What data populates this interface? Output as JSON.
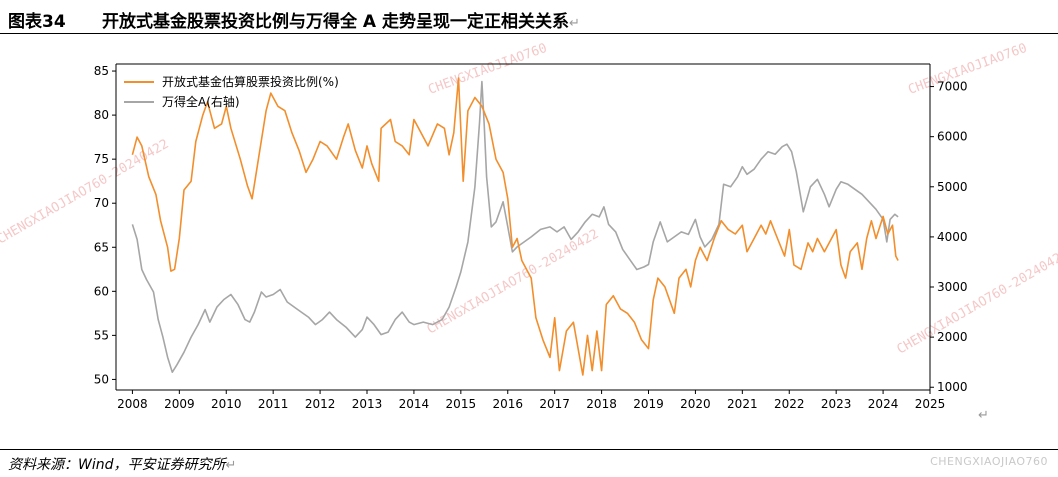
{
  "header": {
    "figure_label": "图表34",
    "title": "开放式基金股票投资比例与万得全 A 走势呈现一定正相关关系"
  },
  "footer": {
    "source": "资料来源：Wind，平安证券研究所",
    "watermark": "CHENGXIAOJIAO760"
  },
  "watermarks": [
    "CHENGXIAOJIAO760-20240422",
    "CHENGXIAOJIAO760",
    "CHENGXIAOJIAO760-20240422",
    "CHENGXIAOJIAO760-20240422",
    "CHENGXIAOJIAO760"
  ],
  "colors": {
    "fund_series": "#f28e2b",
    "index_series": "#a6a6a6",
    "watermark": "#f2b5b5"
  },
  "chart_data": {
    "type": "line",
    "title": "",
    "legend_position": "top-left",
    "grid": false,
    "x_ticks": [
      "2008",
      "2009",
      "2010",
      "2011",
      "2012",
      "2013",
      "2014",
      "2015",
      "2016",
      "2017",
      "2018",
      "2019",
      "2020",
      "2021",
      "2022",
      "2023",
      "2024",
      "2025"
    ],
    "xlim": [
      2007.65,
      2025.0
    ],
    "y_left": {
      "ticks": [
        50,
        55,
        60,
        65,
        70,
        75,
        80,
        85
      ],
      "ylim": [
        48.8,
        85.8
      ]
    },
    "y_right": {
      "ticks": [
        1000,
        2000,
        3000,
        4000,
        5000,
        6000,
        7000
      ],
      "ylim": [
        945,
        7450
      ]
    },
    "series": [
      {
        "name": "开放式基金估算股票投资比例(%)",
        "axis": "left",
        "color": "#f28e2b",
        "points": [
          [
            2008.0,
            75.5
          ],
          [
            2008.1,
            77.5
          ],
          [
            2008.2,
            76.5
          ],
          [
            2008.35,
            73.0
          ],
          [
            2008.5,
            71.0
          ],
          [
            2008.6,
            68.0
          ],
          [
            2008.75,
            65.0
          ],
          [
            2008.82,
            62.3
          ],
          [
            2008.9,
            62.5
          ],
          [
            2009.0,
            66.0
          ],
          [
            2009.1,
            71.5
          ],
          [
            2009.25,
            72.5
          ],
          [
            2009.35,
            77.0
          ],
          [
            2009.5,
            80.0
          ],
          [
            2009.6,
            81.5
          ],
          [
            2009.75,
            78.5
          ],
          [
            2009.9,
            79.0
          ],
          [
            2010.0,
            81.0
          ],
          [
            2010.1,
            78.5
          ],
          [
            2010.3,
            75.0
          ],
          [
            2010.45,
            72.0
          ],
          [
            2010.55,
            70.5
          ],
          [
            2010.7,
            75.5
          ],
          [
            2010.85,
            80.5
          ],
          [
            2010.95,
            82.5
          ],
          [
            2011.1,
            81.0
          ],
          [
            2011.25,
            80.5
          ],
          [
            2011.4,
            78.0
          ],
          [
            2011.55,
            76.0
          ],
          [
            2011.7,
            73.5
          ],
          [
            2011.85,
            75.0
          ],
          [
            2012.0,
            77.0
          ],
          [
            2012.15,
            76.5
          ],
          [
            2012.35,
            75.0
          ],
          [
            2012.5,
            77.5
          ],
          [
            2012.6,
            79.0
          ],
          [
            2012.75,
            76.0
          ],
          [
            2012.9,
            74.0
          ],
          [
            2013.0,
            76.5
          ],
          [
            2013.1,
            74.5
          ],
          [
            2013.25,
            72.5
          ],
          [
            2013.3,
            78.5
          ],
          [
            2013.5,
            79.5
          ],
          [
            2013.6,
            77.0
          ],
          [
            2013.75,
            76.5
          ],
          [
            2013.9,
            75.5
          ],
          [
            2014.0,
            79.5
          ],
          [
            2014.15,
            78.0
          ],
          [
            2014.3,
            76.5
          ],
          [
            2014.5,
            79.0
          ],
          [
            2014.65,
            78.5
          ],
          [
            2014.75,
            75.5
          ],
          [
            2014.85,
            78.0
          ],
          [
            2014.95,
            84.2
          ],
          [
            2015.05,
            72.5
          ],
          [
            2015.15,
            80.5
          ],
          [
            2015.3,
            82.0
          ],
          [
            2015.45,
            81.0
          ],
          [
            2015.6,
            79.0
          ],
          [
            2015.75,
            75.0
          ],
          [
            2015.9,
            73.5
          ],
          [
            2016.0,
            70.5
          ],
          [
            2016.1,
            65.0
          ],
          [
            2016.2,
            66.0
          ],
          [
            2016.3,
            63.5
          ],
          [
            2016.5,
            61.5
          ],
          [
            2016.6,
            57.0
          ],
          [
            2016.75,
            54.5
          ],
          [
            2016.9,
            52.5
          ],
          [
            2017.0,
            57.0
          ],
          [
            2017.1,
            51.0
          ],
          [
            2017.25,
            55.5
          ],
          [
            2017.4,
            56.5
          ],
          [
            2017.5,
            53.5
          ],
          [
            2017.6,
            50.5
          ],
          [
            2017.7,
            55.0
          ],
          [
            2017.8,
            51.0
          ],
          [
            2017.9,
            55.5
          ],
          [
            2018.0,
            51.0
          ],
          [
            2018.1,
            58.5
          ],
          [
            2018.25,
            59.5
          ],
          [
            2018.4,
            58.0
          ],
          [
            2018.55,
            57.5
          ],
          [
            2018.7,
            56.5
          ],
          [
            2018.85,
            54.5
          ],
          [
            2019.0,
            53.5
          ],
          [
            2019.1,
            59.0
          ],
          [
            2019.2,
            61.5
          ],
          [
            2019.35,
            60.5
          ],
          [
            2019.45,
            59.0
          ],
          [
            2019.55,
            57.5
          ],
          [
            2019.65,
            61.5
          ],
          [
            2019.8,
            62.5
          ],
          [
            2019.9,
            60.5
          ],
          [
            2020.0,
            63.5
          ],
          [
            2020.1,
            65.0
          ],
          [
            2020.25,
            63.5
          ],
          [
            2020.4,
            66.0
          ],
          [
            2020.55,
            68.0
          ],
          [
            2020.7,
            67.0
          ],
          [
            2020.85,
            66.5
          ],
          [
            2021.0,
            67.5
          ],
          [
            2021.1,
            64.5
          ],
          [
            2021.25,
            66.0
          ],
          [
            2021.4,
            67.5
          ],
          [
            2021.5,
            66.5
          ],
          [
            2021.6,
            68.0
          ],
          [
            2021.75,
            66.0
          ],
          [
            2021.9,
            64.0
          ],
          [
            2022.0,
            67.0
          ],
          [
            2022.1,
            63.0
          ],
          [
            2022.25,
            62.5
          ],
          [
            2022.4,
            65.5
          ],
          [
            2022.5,
            64.5
          ],
          [
            2022.6,
            66.0
          ],
          [
            2022.75,
            64.5
          ],
          [
            2022.9,
            66.0
          ],
          [
            2023.0,
            67.0
          ],
          [
            2023.1,
            63.0
          ],
          [
            2023.2,
            61.5
          ],
          [
            2023.3,
            64.5
          ],
          [
            2023.45,
            65.5
          ],
          [
            2023.55,
            62.5
          ],
          [
            2023.65,
            66.0
          ],
          [
            2023.75,
            68.0
          ],
          [
            2023.85,
            66.0
          ],
          [
            2024.0,
            68.5
          ],
          [
            2024.1,
            66.5
          ],
          [
            2024.2,
            67.5
          ],
          [
            2024.27,
            64.0
          ],
          [
            2024.32,
            63.5
          ]
        ]
      },
      {
        "name": "万得全A(右轴)",
        "axis": "right",
        "color": "#a6a6a6",
        "points": [
          [
            2008.0,
            4250
          ],
          [
            2008.1,
            3950
          ],
          [
            2008.2,
            3350
          ],
          [
            2008.3,
            3150
          ],
          [
            2008.45,
            2900
          ],
          [
            2008.55,
            2350
          ],
          [
            2008.65,
            2000
          ],
          [
            2008.75,
            1600
          ],
          [
            2008.85,
            1300
          ],
          [
            2008.95,
            1450
          ],
          [
            2009.1,
            1700
          ],
          [
            2009.25,
            2000
          ],
          [
            2009.4,
            2250
          ],
          [
            2009.55,
            2550
          ],
          [
            2009.65,
            2300
          ],
          [
            2009.8,
            2600
          ],
          [
            2009.95,
            2750
          ],
          [
            2010.1,
            2850
          ],
          [
            2010.25,
            2650
          ],
          [
            2010.4,
            2350
          ],
          [
            2010.5,
            2300
          ],
          [
            2010.6,
            2500
          ],
          [
            2010.75,
            2900
          ],
          [
            2010.85,
            2800
          ],
          [
            2011.0,
            2850
          ],
          [
            2011.15,
            2950
          ],
          [
            2011.3,
            2700
          ],
          [
            2011.45,
            2600
          ],
          [
            2011.6,
            2500
          ],
          [
            2011.75,
            2400
          ],
          [
            2011.9,
            2250
          ],
          [
            2012.05,
            2350
          ],
          [
            2012.2,
            2500
          ],
          [
            2012.35,
            2350
          ],
          [
            2012.55,
            2200
          ],
          [
            2012.75,
            2000
          ],
          [
            2012.9,
            2150
          ],
          [
            2013.0,
            2400
          ],
          [
            2013.15,
            2250
          ],
          [
            2013.3,
            2050
          ],
          [
            2013.45,
            2100
          ],
          [
            2013.6,
            2350
          ],
          [
            2013.75,
            2500
          ],
          [
            2013.9,
            2300
          ],
          [
            2014.0,
            2250
          ],
          [
            2014.2,
            2300
          ],
          [
            2014.4,
            2250
          ],
          [
            2014.6,
            2350
          ],
          [
            2014.75,
            2600
          ],
          [
            2014.9,
            3000
          ],
          [
            2015.0,
            3300
          ],
          [
            2015.15,
            3900
          ],
          [
            2015.3,
            5000
          ],
          [
            2015.4,
            6300
          ],
          [
            2015.45,
            7100
          ],
          [
            2015.5,
            6200
          ],
          [
            2015.55,
            5200
          ],
          [
            2015.65,
            4200
          ],
          [
            2015.75,
            4300
          ],
          [
            2015.9,
            4700
          ],
          [
            2016.0,
            4200
          ],
          [
            2016.1,
            3700
          ],
          [
            2016.2,
            3800
          ],
          [
            2016.35,
            3900
          ],
          [
            2016.5,
            4000
          ],
          [
            2016.7,
            4150
          ],
          [
            2016.9,
            4200
          ],
          [
            2017.05,
            4100
          ],
          [
            2017.2,
            4200
          ],
          [
            2017.35,
            3950
          ],
          [
            2017.5,
            4100
          ],
          [
            2017.65,
            4300
          ],
          [
            2017.8,
            4450
          ],
          [
            2017.95,
            4400
          ],
          [
            2018.05,
            4600
          ],
          [
            2018.15,
            4250
          ],
          [
            2018.3,
            4100
          ],
          [
            2018.45,
            3750
          ],
          [
            2018.6,
            3550
          ],
          [
            2018.75,
            3350
          ],
          [
            2018.9,
            3400
          ],
          [
            2019.0,
            3450
          ],
          [
            2019.1,
            3900
          ],
          [
            2019.25,
            4300
          ],
          [
            2019.4,
            3900
          ],
          [
            2019.55,
            4000
          ],
          [
            2019.7,
            4100
          ],
          [
            2019.85,
            4050
          ],
          [
            2020.0,
            4350
          ],
          [
            2020.1,
            4000
          ],
          [
            2020.2,
            3800
          ],
          [
            2020.35,
            3950
          ],
          [
            2020.5,
            4250
          ],
          [
            2020.6,
            5050
          ],
          [
            2020.75,
            5000
          ],
          [
            2020.9,
            5200
          ],
          [
            2021.0,
            5400
          ],
          [
            2021.1,
            5250
          ],
          [
            2021.25,
            5350
          ],
          [
            2021.4,
            5550
          ],
          [
            2021.55,
            5700
          ],
          [
            2021.7,
            5650
          ],
          [
            2021.85,
            5800
          ],
          [
            2021.95,
            5850
          ],
          [
            2022.05,
            5700
          ],
          [
            2022.15,
            5300
          ],
          [
            2022.3,
            4500
          ],
          [
            2022.45,
            5000
          ],
          [
            2022.6,
            5150
          ],
          [
            2022.75,
            4850
          ],
          [
            2022.85,
            4600
          ],
          [
            2023.0,
            4950
          ],
          [
            2023.1,
            5100
          ],
          [
            2023.25,
            5050
          ],
          [
            2023.4,
            4950
          ],
          [
            2023.55,
            4850
          ],
          [
            2023.7,
            4700
          ],
          [
            2023.85,
            4550
          ],
          [
            2024.0,
            4350
          ],
          [
            2024.08,
            3900
          ],
          [
            2024.15,
            4350
          ],
          [
            2024.25,
            4450
          ],
          [
            2024.32,
            4400
          ]
        ]
      }
    ]
  }
}
